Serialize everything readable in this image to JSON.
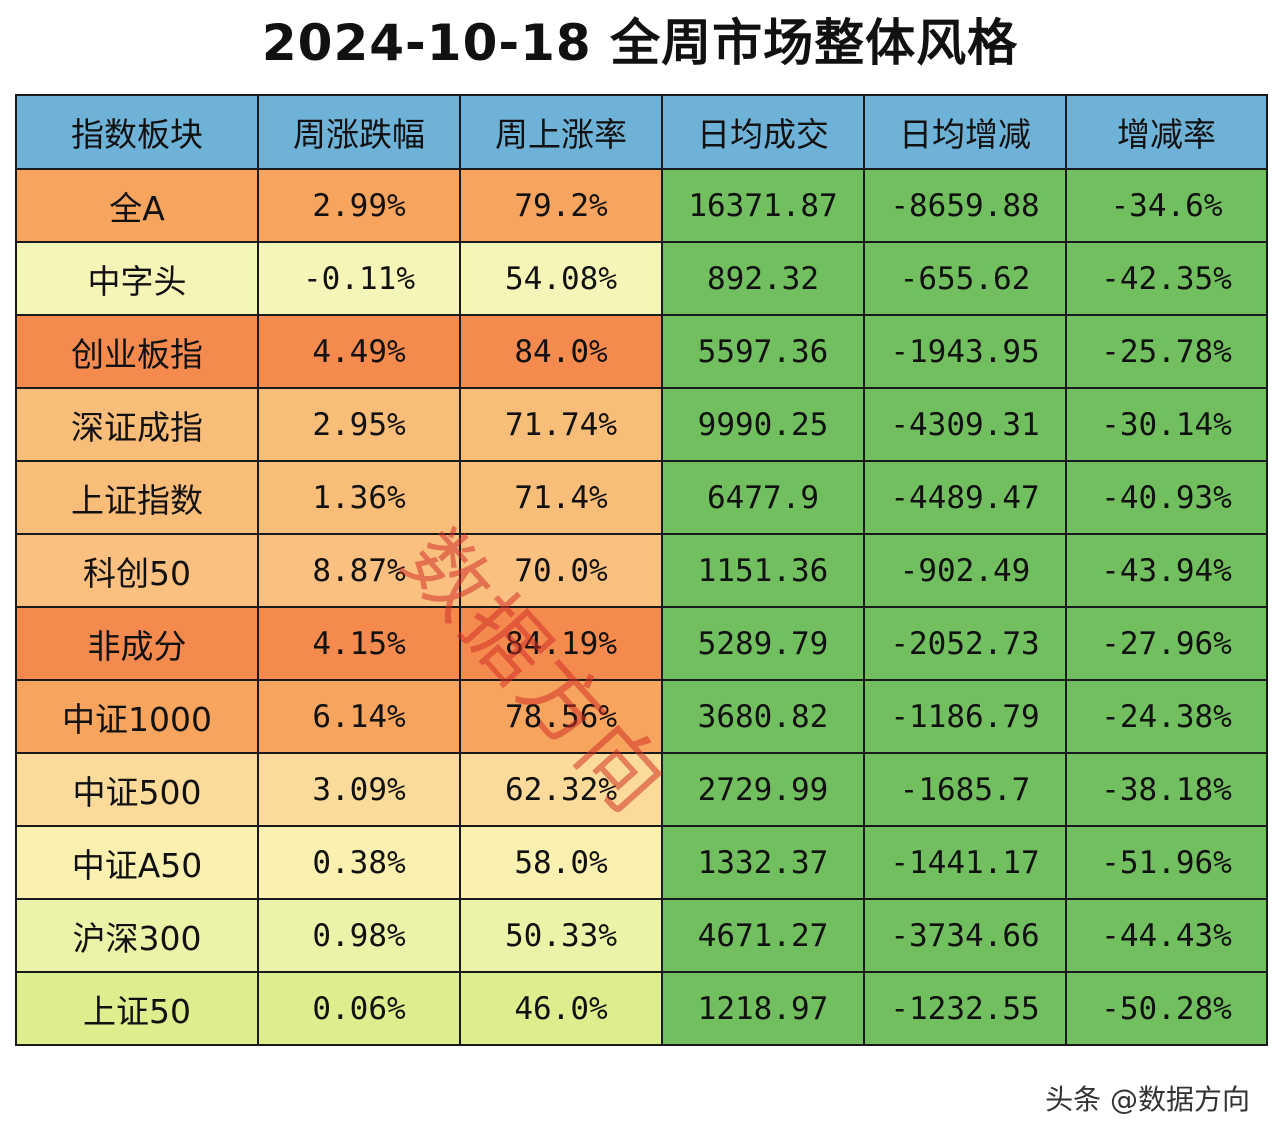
{
  "title": "2024-10-18 全周市场整体风格",
  "table": {
    "headers": [
      "指数板块",
      "周涨跌幅",
      "周上涨率",
      "日均成交",
      "日均增减",
      "增减率"
    ],
    "header_color": "#6fb2d8",
    "green_color": "#72bf5f",
    "rows": [
      {
        "cells": [
          "全A",
          "2.99%",
          "79.2%",
          "16371.87",
          "-8659.88",
          "-34.6%"
        ],
        "color": "#f7a45e"
      },
      {
        "cells": [
          "中字头",
          "-0.11%",
          "54.08%",
          "892.32",
          "-655.62",
          "-42.35%"
        ],
        "color": "#f6f5b8"
      },
      {
        "cells": [
          "创业板指",
          "4.49%",
          "84.0%",
          "5597.36",
          "-1943.95",
          "-25.78%"
        ],
        "color": "#f58a4f"
      },
      {
        "cells": [
          "深证成指",
          "2.95%",
          "71.74%",
          "9990.25",
          "-4309.31",
          "-30.14%"
        ],
        "color": "#f9bd7a"
      },
      {
        "cells": [
          "上证指数",
          "1.36%",
          "71.4%",
          "6477.9",
          "-4489.47",
          "-40.93%"
        ],
        "color": "#f9bd7a"
      },
      {
        "cells": [
          "科创50",
          "8.87%",
          "70.0%",
          "1151.36",
          "-902.49",
          "-43.94%"
        ],
        "color": "#fac080"
      },
      {
        "cells": [
          "非成分",
          "4.15%",
          "84.19%",
          "5289.79",
          "-2052.73",
          "-27.96%"
        ],
        "color": "#f58a4f"
      },
      {
        "cells": [
          "中证1000",
          "6.14%",
          "78.56%",
          "3680.82",
          "-1186.79",
          "-24.38%"
        ],
        "color": "#f7a45e"
      },
      {
        "cells": [
          "中证500",
          "3.09%",
          "62.32%",
          "2729.99",
          "-1685.7",
          "-38.18%"
        ],
        "color": "#fcdb9a"
      },
      {
        "cells": [
          "中证A50",
          "0.38%",
          "58.0%",
          "1332.37",
          "-1441.17",
          "-51.96%"
        ],
        "color": "#faf0b0"
      },
      {
        "cells": [
          "沪深300",
          "0.98%",
          "50.33%",
          "4671.27",
          "-3734.66",
          "-44.43%"
        ],
        "color": "#ebf3a8"
      },
      {
        "cells": [
          "上证50",
          "0.06%",
          "46.0%",
          "1218.97",
          "-1232.55",
          "-50.28%"
        ],
        "color": "#dcee8e"
      }
    ]
  },
  "watermark": "数据方向",
  "footer": "头条 @数据方向"
}
